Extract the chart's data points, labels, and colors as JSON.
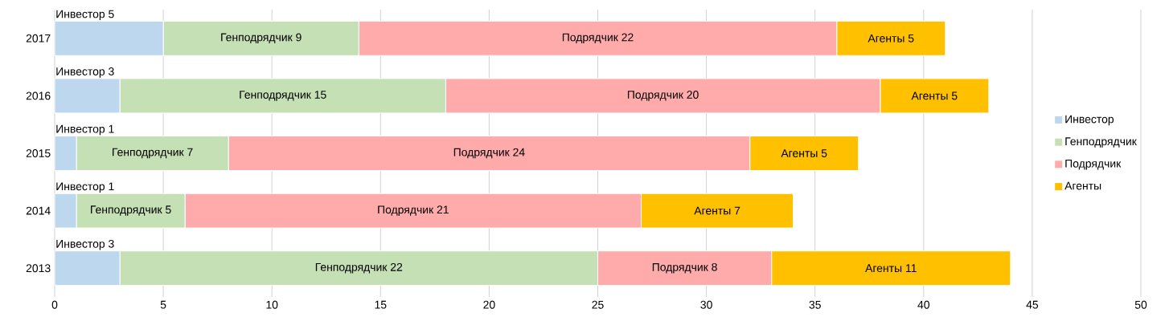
{
  "chart_data": {
    "type": "bar",
    "orientation": "horizontal",
    "stacked": true,
    "categories": [
      "2017",
      "2016",
      "2015",
      "2014",
      "2013"
    ],
    "series": [
      {
        "name": "Инвестор",
        "color": "#bdd7ee",
        "values": [
          5,
          3,
          1,
          1,
          3
        ],
        "value_labels": [
          "Инвестор 5",
          "Инвестор 3",
          "Инвестор 1",
          "Инвестор 1",
          "Инвестор 3"
        ]
      },
      {
        "name": "Генподрядчик",
        "color": "#c5e0b4",
        "values": [
          9,
          15,
          7,
          5,
          22
        ],
        "value_labels": [
          "Генподрядчик 9",
          "Генподрядчик 15",
          "Генподрядчик 7",
          "Генподрядчик 5",
          "Генподрядчик 22"
        ]
      },
      {
        "name": "Подрядчик",
        "color": "#ffabab",
        "values": [
          22,
          20,
          24,
          21,
          8
        ],
        "value_labels": [
          "Подрядчик 22",
          "Подрядчик 20",
          "Подрядчик 24",
          "Подрядчик 21",
          "Подрядчик 8"
        ]
      },
      {
        "name": "Агенты",
        "color": "#ffc000",
        "values": [
          5,
          5,
          5,
          7,
          11
        ],
        "value_labels": [
          "Агенты 5",
          "Агенты 5",
          "Агенты 5",
          "Агенты 7",
          "Агенты 11"
        ]
      }
    ],
    "xlim": [
      0,
      50
    ],
    "xticks": [
      0,
      5,
      10,
      15,
      20,
      25,
      30,
      35,
      40,
      45,
      50
    ],
    "grid": "x",
    "legend": "right"
  }
}
